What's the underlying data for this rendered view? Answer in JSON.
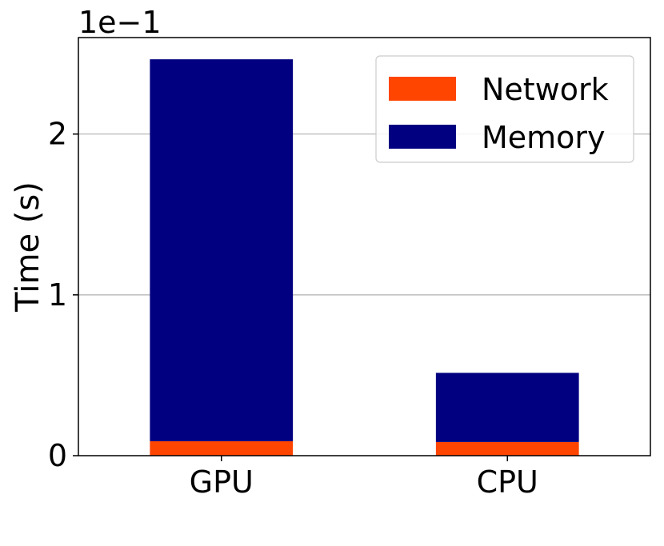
{
  "chart_data": {
    "type": "bar",
    "stacked": true,
    "categories": [
      "GPU",
      "CPU"
    ],
    "series": [
      {
        "name": "Network",
        "color": "#FF4500",
        "values": [
          0.009,
          0.0085
        ]
      },
      {
        "name": "Memory",
        "color": "#000080",
        "values": [
          0.2375,
          0.043
        ]
      }
    ],
    "xlabel": "",
    "ylabel": "Time (s)",
    "y_offset_label": "1e−1",
    "ylim": [
      0,
      0.26
    ],
    "yticks": [
      0,
      0.1,
      0.2
    ],
    "ytick_labels": [
      "0",
      "1",
      "2"
    ],
    "grid": "y",
    "legend_position": "top-right"
  }
}
